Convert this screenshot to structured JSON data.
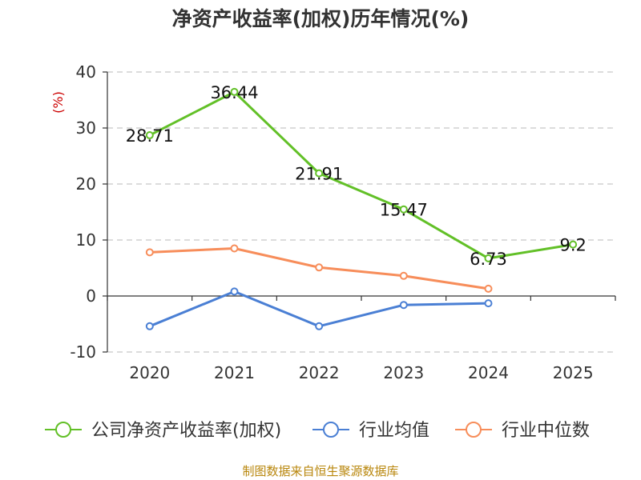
{
  "chart_data": {
    "type": "line",
    "title": "净资产收益率(加权)历年情况(%)",
    "unit_label": "(%)",
    "categories": [
      "2020",
      "2021",
      "2022",
      "2023",
      "2024",
      "2025"
    ],
    "ylim": [
      -10,
      40
    ],
    "yticks": [
      40,
      30,
      20,
      10,
      0,
      -10
    ],
    "grid": true,
    "legend_position": "bottom",
    "series": [
      {
        "name": "公司净资产收益率(加权)",
        "color": "#62c027",
        "values": [
          28.71,
          36.44,
          21.91,
          15.47,
          6.73,
          9.2
        ],
        "labels": [
          "28.71",
          "36.44",
          "21.91",
          "15.47",
          "6.73",
          "9.2"
        ],
        "show_labels": true
      },
      {
        "name": "行业均值",
        "color": "#4a7fd4",
        "values": [
          -5.4,
          0.8,
          -5.4,
          -1.6,
          -1.3,
          null
        ],
        "show_labels": false
      },
      {
        "name": "行业中位数",
        "color": "#f78d5a",
        "values": [
          7.8,
          8.5,
          5.1,
          3.6,
          1.3,
          null
        ],
        "show_labels": false
      }
    ],
    "source": "制图数据来自恒生聚源数据库"
  }
}
